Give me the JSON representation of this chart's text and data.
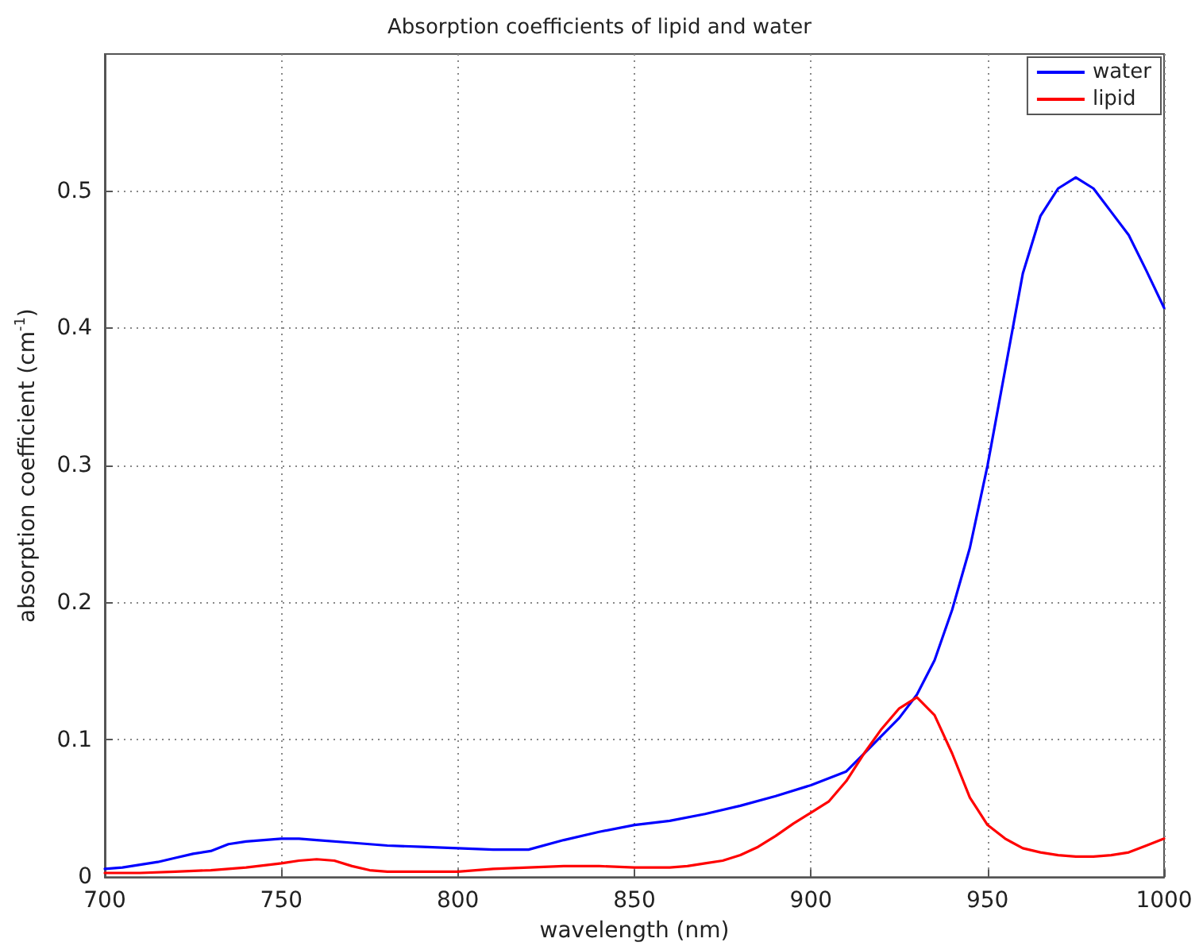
{
  "chart_data": {
    "type": "line",
    "title": "Absorption coefficients of lipid and water",
    "xlabel": "wavelength (nm)",
    "ylabel": "absorption coefficient (cm$^{-1}$)",
    "xlim": [
      700,
      1000
    ],
    "xticks": [
      700,
      750,
      800,
      850,
      900,
      950,
      1000
    ],
    "ylim": [
      0,
      0.6
    ],
    "yticks": [
      0,
      0.1,
      0.2,
      0.3,
      0.4,
      0.5
    ],
    "grid": true,
    "legend": "top right",
    "marker": "none",
    "line_style": "solid",
    "series": [
      {
        "name": "water",
        "color": "#0000ff",
        "x": [
          700,
          705,
          710,
          715,
          720,
          725,
          730,
          735,
          740,
          745,
          750,
          755,
          760,
          770,
          780,
          790,
          800,
          810,
          820,
          830,
          840,
          850,
          860,
          870,
          880,
          890,
          900,
          910,
          915,
          920,
          925,
          930,
          935,
          940,
          945,
          950,
          955,
          960,
          965,
          970,
          975,
          980,
          985,
          990,
          995,
          1000
        ],
        "values": [
          0.006,
          0.007,
          0.009,
          0.011,
          0.014,
          0.017,
          0.019,
          0.024,
          0.026,
          0.027,
          0.028,
          0.028,
          0.027,
          0.025,
          0.023,
          0.022,
          0.021,
          0.02,
          0.02,
          0.027,
          0.033,
          0.038,
          0.041,
          0.046,
          0.052,
          0.059,
          0.067,
          0.077,
          0.09,
          0.103,
          0.116,
          0.133,
          0.158,
          0.195,
          0.24,
          0.3,
          0.37,
          0.44,
          0.482,
          0.502,
          0.51,
          0.502,
          0.485,
          0.468,
          0.442,
          0.415
        ]
      },
      {
        "name": "lipid",
        "color": "#ff0000",
        "x": [
          700,
          710,
          720,
          730,
          740,
          750,
          755,
          760,
          765,
          770,
          775,
          780,
          790,
          800,
          810,
          820,
          830,
          840,
          850,
          860,
          865,
          870,
          875,
          880,
          885,
          890,
          895,
          900,
          905,
          910,
          915,
          920,
          925,
          930,
          935,
          940,
          945,
          950,
          955,
          960,
          965,
          970,
          975,
          980,
          985,
          990,
          995,
          1000
        ],
        "values": [
          0.003,
          0.003,
          0.004,
          0.005,
          0.007,
          0.01,
          0.012,
          0.013,
          0.012,
          0.008,
          0.005,
          0.004,
          0.004,
          0.004,
          0.006,
          0.007,
          0.008,
          0.008,
          0.007,
          0.007,
          0.008,
          0.01,
          0.012,
          0.016,
          0.022,
          0.03,
          0.039,
          0.047,
          0.055,
          0.07,
          0.09,
          0.108,
          0.123,
          0.131,
          0.118,
          0.09,
          0.058,
          0.038,
          0.028,
          0.021,
          0.018,
          0.016,
          0.015,
          0.015,
          0.016,
          0.018,
          0.023,
          0.028
        ]
      }
    ]
  }
}
